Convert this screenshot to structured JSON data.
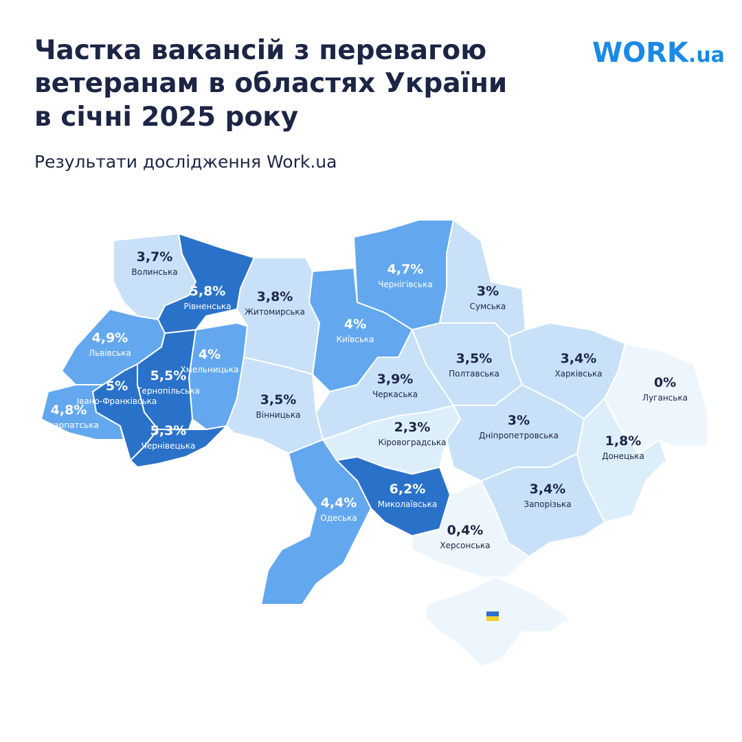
{
  "header": {
    "title": [
      "Частка вакансій з перевагою",
      "ветеранам в областях України",
      "в січні 2025 року"
    ],
    "subtitle": "Результати дослідження Work.ua"
  },
  "logo": {
    "text": "WORK",
    "suffix": ".ua"
  },
  "map": {
    "type": "choropleth",
    "regions": [
      {
        "name": "Волинська",
        "value": 3.7,
        "value_label": "3,7%"
      },
      {
        "name": "Рівненська",
        "value": 5.8,
        "value_label": "5,8%"
      },
      {
        "name": "Житомирська",
        "value": 3.8,
        "value_label": "3,8%"
      },
      {
        "name": "Київська",
        "value": 4,
        "value_label": "4%"
      },
      {
        "name": "Чернігівська",
        "value": 4.7,
        "value_label": "4,7%"
      },
      {
        "name": "Сумська",
        "value": 3,
        "value_label": "3%"
      },
      {
        "name": "Львівська",
        "value": 4.9,
        "value_label": "4,9%"
      },
      {
        "name": "Хмельницька",
        "value": 4,
        "value_label": "4%"
      },
      {
        "name": "Тернопільська",
        "value": 5.5,
        "value_label": "5,5%"
      },
      {
        "name": "Івано-Франківська",
        "value": 5,
        "value_label": "5%"
      },
      {
        "name": "Закарпатська",
        "value": 4.8,
        "value_label": "4,8%"
      },
      {
        "name": "Чернівецька",
        "value": 5.3,
        "value_label": "5,3%"
      },
      {
        "name": "Вінницька",
        "value": 3.5,
        "value_label": "3,5%"
      },
      {
        "name": "Черкаська",
        "value": 3.9,
        "value_label": "3,9%"
      },
      {
        "name": "Полтавська",
        "value": 3.5,
        "value_label": "3,5%"
      },
      {
        "name": "Харківська",
        "value": 3.4,
        "value_label": "3,4%"
      },
      {
        "name": "Луганська",
        "value": 0,
        "value_label": "0%"
      },
      {
        "name": "Донецька",
        "value": 1.8,
        "value_label": "1,8%"
      },
      {
        "name": "Дніпропетровська",
        "value": 3,
        "value_label": "3%"
      },
      {
        "name": "Кіровоградська",
        "value": 2.3,
        "value_label": "2,3%"
      },
      {
        "name": "Запорізька",
        "value": 3.4,
        "value_label": "3,4%"
      },
      {
        "name": "Миколаївська",
        "value": 6.2,
        "value_label": "6,2%"
      },
      {
        "name": "Одеська",
        "value": 4.4,
        "value_label": "4,4%"
      },
      {
        "name": "Херсонська",
        "value": 0.4,
        "value_label": "0,4%"
      }
    ]
  }
}
